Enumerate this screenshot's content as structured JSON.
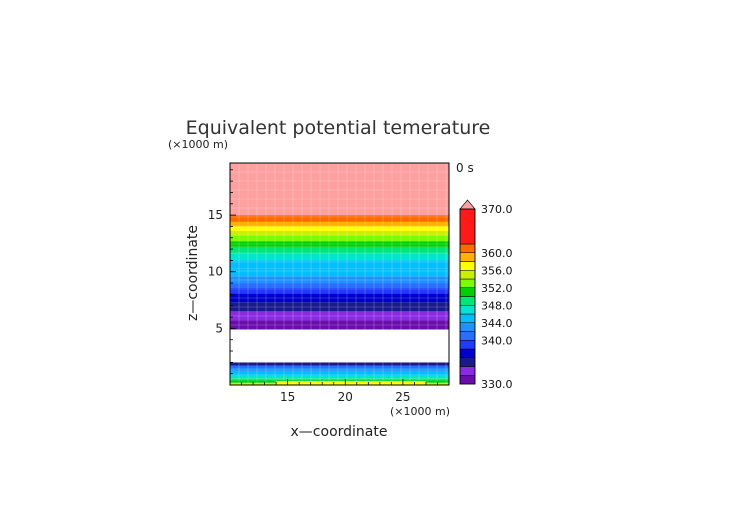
{
  "chart_data": {
    "type": "heatmap",
    "title": "Equivalent potential temerature",
    "xlabel": "x—coordinate",
    "ylabel": "z—coordinate",
    "x_unit": "(×1000 m)",
    "y_unit": "(×1000 m)",
    "time_label": "0 s",
    "xlim": [
      10,
      29
    ],
    "ylim": [
      0,
      19.6
    ],
    "x_ticks": [
      15,
      20,
      25
    ],
    "y_ticks": [
      5,
      10,
      15
    ],
    "grid": true,
    "colorbar": {
      "min": 330.0,
      "max": 370.0,
      "tick_labels": [
        "370.0",
        "360.0",
        "356.0",
        "352.0",
        "348.0",
        "344.0",
        "340.0",
        "330.0"
      ],
      "levels": [
        330,
        332,
        334,
        336,
        338,
        340,
        342,
        344,
        346,
        348,
        350,
        352,
        354,
        356,
        358,
        360,
        362,
        370
      ],
      "colors": [
        "#6a0dad",
        "#8a2be2",
        "#1a1a8c",
        "#0000cd",
        "#1e3cff",
        "#2a6dff",
        "#1e90ff",
        "#00bfff",
        "#00e5d0",
        "#00e57a",
        "#00d000",
        "#7cfc00",
        "#c8f000",
        "#ffff00",
        "#ffb000",
        "#ff6a00",
        "#ff1a1a",
        "#ffa0a0"
      ],
      "overflow_color": "#ffa0a0"
    },
    "profile": [
      {
        "z0": 0.0,
        "z1": 0.2,
        "v": 355
      },
      {
        "z0": 0.2,
        "z1": 0.4,
        "v": 351
      },
      {
        "z0": 0.4,
        "z1": 0.6,
        "v": 349
      },
      {
        "z0": 0.6,
        "z1": 0.9,
        "v": 347
      },
      {
        "z0": 0.9,
        "z1": 1.2,
        "v": 345
      },
      {
        "z0": 1.2,
        "z1": 1.5,
        "v": 343
      },
      {
        "z0": 1.5,
        "z1": 1.7,
        "v": 341
      },
      {
        "z0": 1.7,
        "z1": 2.0,
        "v": 335
      },
      {
        "z0": 2.0,
        "z1": 4.9,
        "v": null
      },
      {
        "z0": 4.9,
        "z1": 5.7,
        "v": 331
      },
      {
        "z0": 5.7,
        "z1": 6.5,
        "v": 333
      },
      {
        "z0": 6.5,
        "z1": 7.3,
        "v": 335
      },
      {
        "z0": 7.3,
        "z1": 8.1,
        "v": 337
      },
      {
        "z0": 8.1,
        "z1": 8.6,
        "v": 339
      },
      {
        "z0": 8.6,
        "z1": 9.0,
        "v": 341
      },
      {
        "z0": 9.0,
        "z1": 9.6,
        "v": 343
      },
      {
        "z0": 9.6,
        "z1": 10.3,
        "v": 344
      },
      {
        "z0": 10.3,
        "z1": 11.0,
        "v": 345
      },
      {
        "z0": 11.0,
        "z1": 11.6,
        "v": 347
      },
      {
        "z0": 11.6,
        "z1": 12.2,
        "v": 349
      },
      {
        "z0": 12.2,
        "z1": 12.7,
        "v": 351
      },
      {
        "z0": 12.7,
        "z1": 13.2,
        "v": 353
      },
      {
        "z0": 13.2,
        "z1": 13.6,
        "v": 355
      },
      {
        "z0": 13.6,
        "z1": 14.0,
        "v": 357
      },
      {
        "z0": 14.0,
        "z1": 14.4,
        "v": 359
      },
      {
        "z0": 14.4,
        "z1": 15.0,
        "v": 361
      },
      {
        "z0": 15.0,
        "z1": 19.6,
        "v": 371
      }
    ],
    "bottom_warm_patch": {
      "x0": 14,
      "x1": 27,
      "z0": 0.0,
      "z1": 0.35,
      "v": 357
    }
  }
}
